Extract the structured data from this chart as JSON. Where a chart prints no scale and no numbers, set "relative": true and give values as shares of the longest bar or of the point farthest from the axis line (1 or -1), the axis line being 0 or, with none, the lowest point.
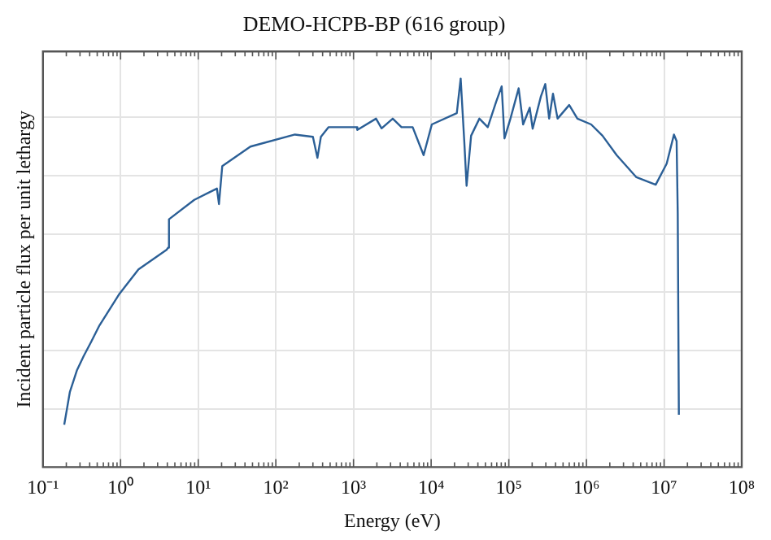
{
  "chart_data": {
    "type": "line",
    "title": "DEMO-HCPB-BP (616 group)",
    "xlabel": "Energy (eV)",
    "ylabel": "Incident particle flux per unit lethargy",
    "relative": true,
    "log": "x",
    "grid": true,
    "legend": false,
    "marker": "none",
    "line_style": "solid",
    "xlim": [
      0.1,
      100000000
    ],
    "xticks": [
      {
        "value": 0.1,
        "label": "10⁻¹"
      },
      {
        "value": 1,
        "label": "10⁰"
      },
      {
        "value": 10,
        "label": "10¹"
      },
      {
        "value": 100,
        "label": "10²"
      },
      {
        "value": 1000,
        "label": "10³"
      },
      {
        "value": 10000,
        "label": "10⁴"
      },
      {
        "value": 100000,
        "label": "10⁵"
      },
      {
        "value": 1000000,
        "label": "10⁶"
      },
      {
        "value": 10000000,
        "label": "10⁷"
      },
      {
        "value": 100000000,
        "label": "10⁸"
      }
    ],
    "series": [
      {
        "color": "#2b5f96",
        "x": [
          0.188,
          0.222,
          0.275,
          0.335,
          0.417,
          0.535,
          0.95,
          1.7,
          3.9,
          4.1,
          4.2,
          8.9,
          17.4,
          18.5,
          20.4,
          47,
          176,
          300,
          343,
          380,
          478,
          1100,
          1120,
          1950,
          2300,
          3200,
          4150,
          5780,
          8000,
          10200,
          21400,
          24000,
          26700,
          28600,
          32700,
          41800,
          53600,
          68600,
          81000,
          88000,
          105000,
          134000,
          153000,
          186000,
          203000,
          259000,
          295000,
          331000,
          371000,
          425000,
          600000,
          765000,
          1150000,
          1610000,
          2450000,
          4400000,
          7800000,
          10800000,
          13400000,
          14500000,
          15000000,
          15500000
        ],
        "values": [
          0.109,
          0.193,
          0.25,
          0.286,
          0.322,
          0.365,
          0.444,
          0.509,
          0.559,
          0.565,
          0.638,
          0.688,
          0.717,
          0.677,
          0.775,
          0.825,
          0.856,
          0.85,
          0.796,
          0.85,
          0.875,
          0.875,
          0.868,
          0.897,
          0.872,
          0.897,
          0.875,
          0.875,
          0.803,
          0.882,
          0.911,
          1.0,
          0.839,
          0.724,
          0.853,
          0.897,
          0.875,
          0.94,
          0.98,
          0.846,
          0.897,
          0.975,
          0.882,
          0.925,
          0.871,
          0.954,
          0.986,
          0.897,
          0.961,
          0.897,
          0.932,
          0.897,
          0.882,
          0.853,
          0.803,
          0.746,
          0.727,
          0.781,
          0.856,
          0.839,
          0.652,
          0.135
        ]
      }
    ]
  }
}
